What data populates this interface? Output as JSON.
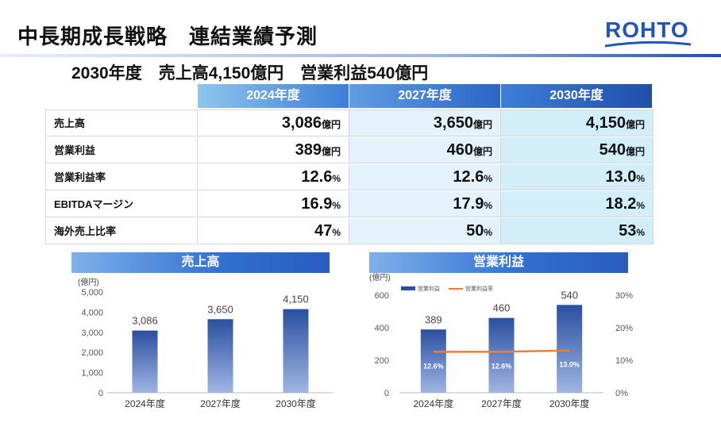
{
  "header": {
    "title": "中長期成長戦略　連結業績予測",
    "logo_text": "ROHTO"
  },
  "subtitle": "2030年度　売上高4,150億円　営業利益540億円",
  "table": {
    "columns": [
      "2024年度",
      "2027年度",
      "2030年度"
    ],
    "rows": [
      {
        "label": "売上高",
        "values": [
          "3,086",
          "3,650",
          "4,150"
        ],
        "unit": "億円"
      },
      {
        "label": "営業利益",
        "values": [
          "389",
          "460",
          "540"
        ],
        "unit": "億円"
      },
      {
        "label": "営業利益率",
        "values": [
          "12.6",
          "12.6",
          "13.0"
        ],
        "unit": "%"
      },
      {
        "label": "EBITDAマージン",
        "values": [
          "16.9",
          "17.9",
          "18.2"
        ],
        "unit": "%"
      },
      {
        "label": "海外売上比率",
        "values": [
          "47",
          "50",
          "53"
        ],
        "unit": "%"
      }
    ]
  },
  "colors": {
    "bar_dark": "#2b4fa0",
    "bar_light": "#9fb6e3",
    "line": "#ed7d31",
    "header_blue": "#2e6fce",
    "logo": "#1f56b8"
  },
  "chart_data": [
    {
      "type": "bar",
      "title": "売上高",
      "unit_label": "(億円)",
      "categories": [
        "2024年度",
        "2027年度",
        "2030年度"
      ],
      "values": [
        3086,
        3650,
        4150
      ],
      "data_labels": [
        "3,086",
        "3,650",
        "4,150"
      ],
      "ylim": [
        0,
        5000
      ],
      "yticks": [
        "0",
        "1,000",
        "2,000",
        "3,000",
        "4,000",
        "5,000"
      ],
      "grid": false
    },
    {
      "type": "bar",
      "title": "営業利益",
      "unit_label": "(億円)",
      "categories": [
        "2024年度",
        "2027年度",
        "2030年度"
      ],
      "legend": [
        "営業利益",
        "営業利益率"
      ],
      "legend_position": "top-left",
      "series": [
        {
          "name": "営業利益",
          "type": "bar",
          "values": [
            389,
            460,
            540
          ],
          "data_labels": [
            "389",
            "460",
            "540"
          ],
          "axis": "left"
        },
        {
          "name": "営業利益率",
          "type": "line",
          "values": [
            12.6,
            12.6,
            13.0
          ],
          "data_labels": [
            "12.6%",
            "12.6%",
            "13.0%"
          ],
          "axis": "right"
        }
      ],
      "ylim": [
        0,
        600
      ],
      "yticks": [
        "0",
        "200",
        "400",
        "600"
      ],
      "y2lim": [
        0,
        30
      ],
      "y2ticks": [
        "0%",
        "10%",
        "20%",
        "30%"
      ],
      "grid": false
    }
  ]
}
